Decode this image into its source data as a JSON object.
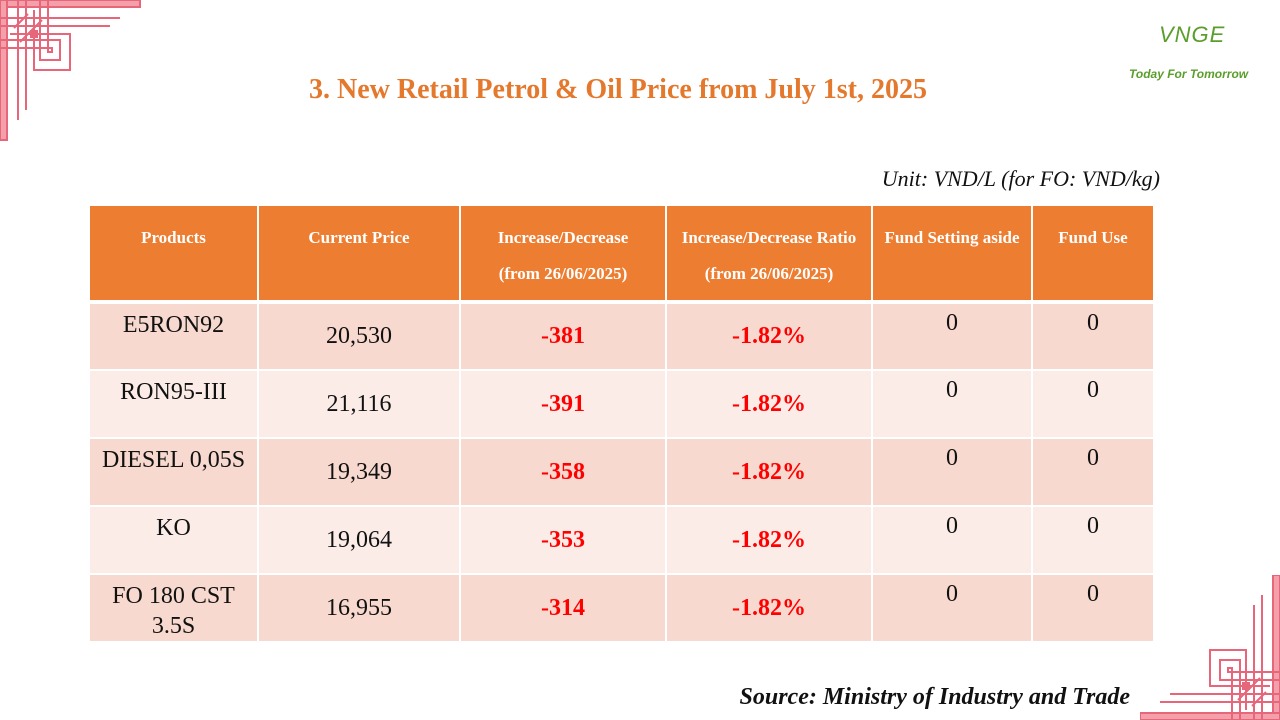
{
  "brand": {
    "logo_text": "VNGE",
    "tagline": "Today For Tomorrow"
  },
  "title": "3. New Retail Petrol & Oil Price from July 1st, 2025",
  "unit": "Unit: VND/L (for FO: VND/kg)",
  "table": {
    "headers": [
      {
        "line1": "Products",
        "line2": ""
      },
      {
        "line1": "Current Price",
        "line2": ""
      },
      {
        "line1": "Increase/Decrease",
        "line2": "(from 26/06/2025)"
      },
      {
        "line1": "Increase/Decrease Ratio",
        "line2": "(from 26/06/2025)"
      },
      {
        "line1": "Fund Setting aside",
        "line2": ""
      },
      {
        "line1": "Fund Use",
        "line2": ""
      }
    ],
    "rows": [
      {
        "product": "E5RON92",
        "price": "20,530",
        "change": "-381",
        "ratio": "-1.82%",
        "fund_set": "0",
        "fund_use": "0"
      },
      {
        "product": "RON95-III",
        "price": "21,116",
        "change": "-391",
        "ratio": "-1.82%",
        "fund_set": "0",
        "fund_use": "0"
      },
      {
        "product": "DIESEL 0,05S",
        "price": "19,349",
        "change": "-358",
        "ratio": "-1.82%",
        "fund_set": "0",
        "fund_use": "0"
      },
      {
        "product": "KO",
        "price": "19,064",
        "change": "-353",
        "ratio": "-1.82%",
        "fund_set": "0",
        "fund_use": "0"
      },
      {
        "product": "FO 180 CST 3.5S",
        "price": "16,955",
        "change": "-314",
        "ratio": "-1.82%",
        "fund_set": "0",
        "fund_use": "0"
      }
    ]
  },
  "source": "Source: Ministry of Industry and Trade",
  "colors": {
    "header": "#ed7d31",
    "title": "#e4782d",
    "negative": "#ff0000",
    "row_odd": "#f8d9cf",
    "row_even": "#fbece7",
    "brand": "#5a9e2b",
    "ornament": "#e8667a"
  }
}
